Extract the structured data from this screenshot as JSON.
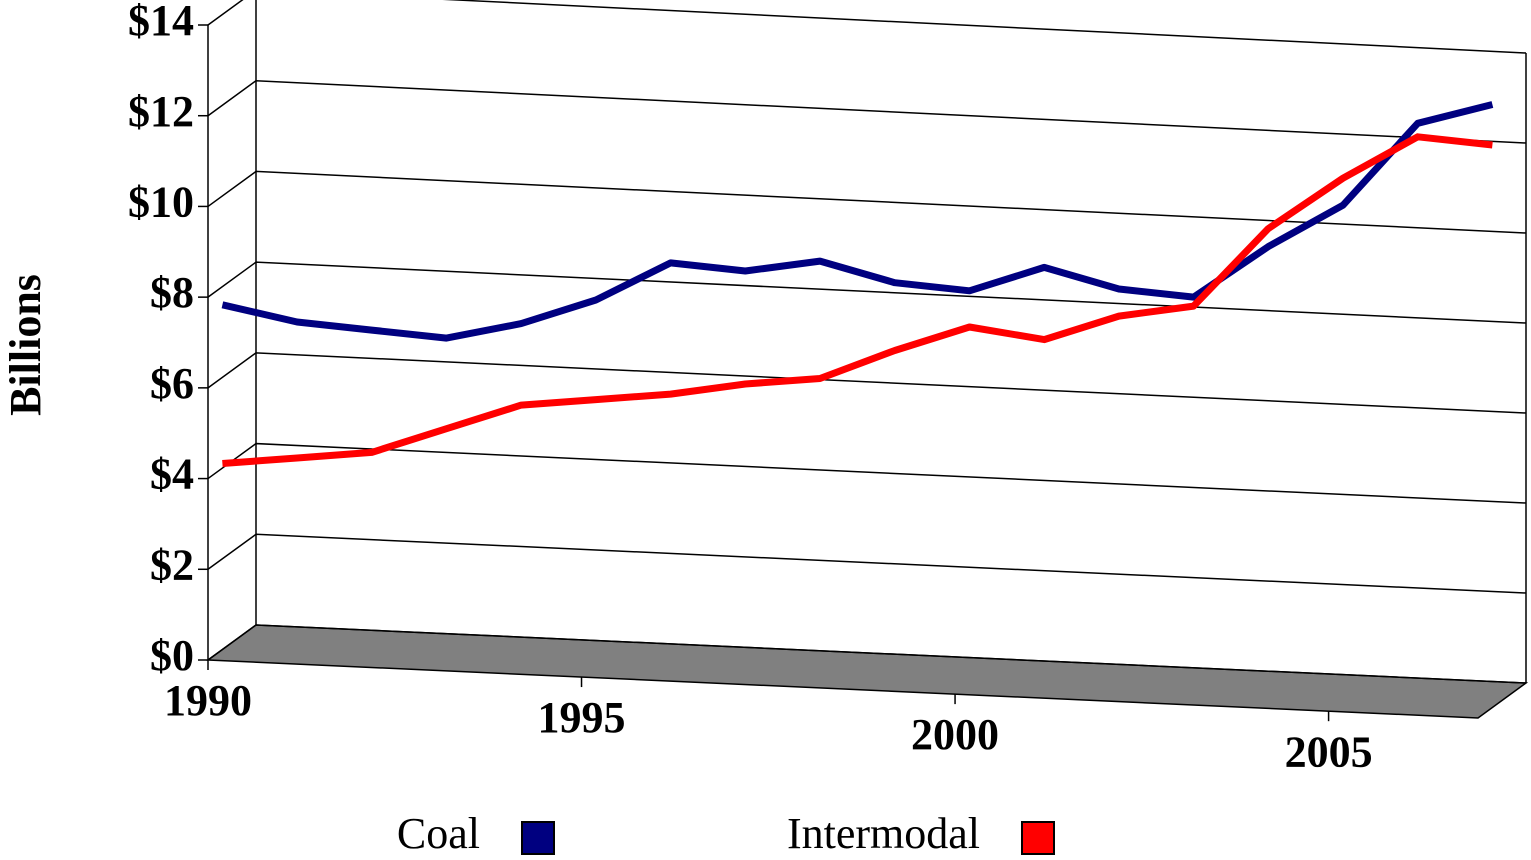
{
  "chart_data": {
    "type": "line",
    "y_label": "Billions",
    "x": [
      1990,
      1991,
      1992,
      1993,
      1994,
      1995,
      1996,
      1997,
      1998,
      1999,
      2000,
      2001,
      2002,
      2003,
      2004,
      2005,
      2006,
      2007
    ],
    "series": [
      {
        "name": "Coal",
        "color": "#000080",
        "values": [
          7.6,
          7.3,
          7.2,
          7.1,
          7.5,
          8.1,
          9.0,
          8.9,
          9.2,
          8.8,
          8.7,
          9.3,
          8.9,
          8.8,
          10.0,
          11.0,
          12.9,
          13.4
        ]
      },
      {
        "name": "Intermodal",
        "color": "#ff0000",
        "values": [
          4.1,
          4.3,
          4.5,
          5.1,
          5.7,
          5.9,
          6.1,
          6.4,
          6.6,
          7.3,
          7.9,
          7.7,
          8.3,
          8.6,
          10.4,
          11.6,
          12.6,
          12.5
        ]
      }
    ],
    "xlim": [
      1990,
      2007
    ],
    "xticks": [
      1990,
      1995,
      2000,
      2005
    ],
    "ylim": [
      0,
      14
    ],
    "yticks": [
      {
        "value": 0,
        "label": "$0"
      },
      {
        "value": 2,
        "label": "$2"
      },
      {
        "value": 4,
        "label": "$4"
      },
      {
        "value": 6,
        "label": "$6"
      },
      {
        "value": 8,
        "label": "$8"
      },
      {
        "value": 10,
        "label": "$10"
      },
      {
        "value": 12,
        "label": "$12"
      },
      {
        "value": 14,
        "label": "$14"
      }
    ],
    "grid": true,
    "legend": "bottom"
  }
}
